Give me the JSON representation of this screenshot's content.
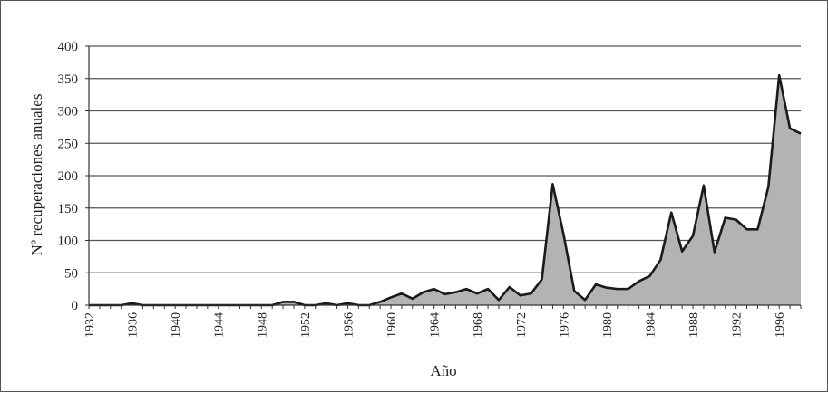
{
  "chart_data": {
    "type": "area",
    "title": "",
    "xlabel": "Año",
    "ylabel": "Nº recuperaciones anuales",
    "xlim": [
      1932,
      1998
    ],
    "ylim": [
      0,
      400
    ],
    "y_ticks": [
      0,
      50,
      100,
      150,
      200,
      250,
      300,
      350,
      400
    ],
    "x_tick_labels": [
      "1932",
      "1936",
      "1940",
      "1944",
      "1948",
      "1952",
      "1956",
      "1960",
      "1964",
      "1968",
      "1972",
      "1976",
      "1980",
      "1984",
      "1988",
      "1992",
      "1996"
    ],
    "grid": "horizontal",
    "legend": "none",
    "colors": {
      "line": "#1a1a1a",
      "fill": "#b3b3b3",
      "grid": "#555555"
    },
    "series": [
      {
        "x": [
          1932,
          1933,
          1934,
          1935,
          1936,
          1937,
          1938,
          1939,
          1940,
          1941,
          1942,
          1943,
          1944,
          1945,
          1946,
          1947,
          1948,
          1949,
          1950,
          1951,
          1952,
          1953,
          1954,
          1955,
          1956,
          1957,
          1958,
          1959,
          1960,
          1961,
          1962,
          1963,
          1964,
          1965,
          1966,
          1967,
          1968,
          1969,
          1970,
          1971,
          1972,
          1973,
          1974,
          1975,
          1976,
          1977,
          1978,
          1979,
          1980,
          1981,
          1982,
          1983,
          1984,
          1985,
          1986,
          1987,
          1988,
          1989,
          1990,
          1991,
          1992,
          1993,
          1994,
          1995,
          1996,
          1997,
          1998
        ],
        "values": [
          0,
          0,
          0,
          0,
          3,
          0,
          0,
          0,
          0,
          0,
          0,
          0,
          0,
          0,
          0,
          0,
          0,
          0,
          5,
          5,
          0,
          0,
          3,
          0,
          3,
          0,
          0,
          5,
          12,
          18,
          10,
          20,
          25,
          17,
          20,
          25,
          18,
          25,
          8,
          28,
          15,
          18,
          40,
          187,
          110,
          22,
          8,
          32,
          27,
          25,
          25,
          37,
          45,
          70,
          143,
          83,
          107,
          185,
          82,
          135,
          132,
          117,
          117,
          183,
          355,
          273,
          265
        ]
      }
    ]
  }
}
